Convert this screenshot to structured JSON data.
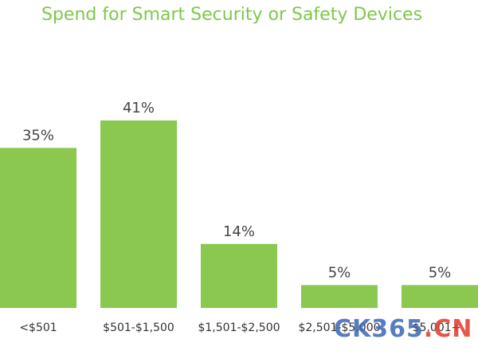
{
  "chart_data": {
    "type": "bar",
    "title": "Spend for Smart Security or Safety Devices",
    "categories": [
      "<$501",
      "$501-$1,500",
      "$1,501-$2,500",
      "$2,501-$5,000",
      "$5,001+"
    ],
    "values": [
      35,
      41,
      14,
      5,
      5
    ],
    "value_labels": [
      "35%",
      "41%",
      "14%",
      "5%",
      "5%"
    ],
    "ylim": [
      0,
      41
    ],
    "grid": false,
    "bar_color": "#8ac84f"
  },
  "watermark": {
    "part1": "CK365",
    "part2": ".CN"
  }
}
